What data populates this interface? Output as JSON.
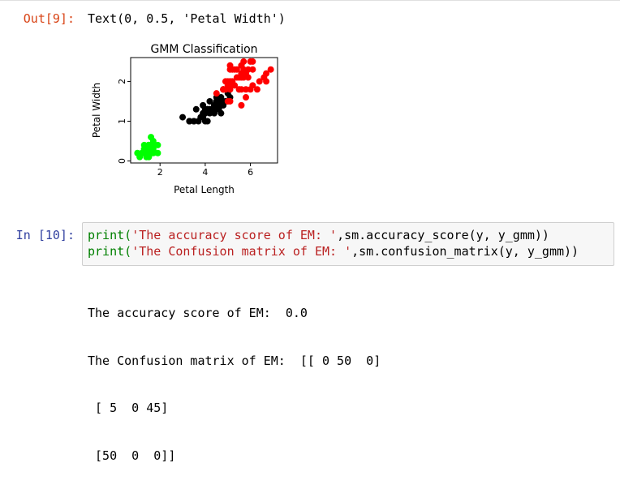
{
  "cells": {
    "out9": {
      "prompt": "Out[9]:",
      "text": "Text(0, 0.5, 'Petal Width')"
    },
    "in10": {
      "prompt": "In [10]:",
      "line1": {
        "fn": "print(",
        "str": "'The accuracy score of EM: '",
        "rest": ",sm.accuracy_score(y, y_gmm))"
      },
      "line2": {
        "fn": "print(",
        "str": "'The Confusion matrix of EM: '",
        "rest": ",sm.confusion_matrix(y, y_gmm))"
      }
    },
    "stdout": [
      "The accuracy score of EM:  0.0",
      "The Confusion matrix of EM:  [[ 0 50  0]",
      " [ 5  0 45]",
      " [50  0  0]]"
    ]
  },
  "chart_data": {
    "type": "scatter",
    "title": "GMM Classification",
    "xlabel": "Petal Length",
    "ylabel": "Petal Width",
    "xlim": [
      0.7,
      7.2
    ],
    "ylim": [
      -0.05,
      2.6
    ],
    "xticks": [
      2,
      4,
      6
    ],
    "yticks": [
      0,
      1,
      2
    ],
    "grid": false,
    "series": [
      {
        "color": "#00ff00",
        "points": [
          [
            1.4,
            0.2
          ],
          [
            1.4,
            0.2
          ],
          [
            1.3,
            0.2
          ],
          [
            1.5,
            0.2
          ],
          [
            1.4,
            0.2
          ],
          [
            1.7,
            0.4
          ],
          [
            1.4,
            0.3
          ],
          [
            1.5,
            0.2
          ],
          [
            1.4,
            0.2
          ],
          [
            1.5,
            0.1
          ],
          [
            1.5,
            0.2
          ],
          [
            1.6,
            0.2
          ],
          [
            1.4,
            0.1
          ],
          [
            1.1,
            0.1
          ],
          [
            1.2,
            0.2
          ],
          [
            1.5,
            0.4
          ],
          [
            1.3,
            0.4
          ],
          [
            1.4,
            0.3
          ],
          [
            1.7,
            0.3
          ],
          [
            1.5,
            0.3
          ],
          [
            1.7,
            0.2
          ],
          [
            1.5,
            0.4
          ],
          [
            1.0,
            0.2
          ],
          [
            1.7,
            0.5
          ],
          [
            1.9,
            0.2
          ],
          [
            1.6,
            0.2
          ],
          [
            1.6,
            0.4
          ],
          [
            1.5,
            0.2
          ],
          [
            1.4,
            0.2
          ],
          [
            1.6,
            0.2
          ],
          [
            1.6,
            0.2
          ],
          [
            1.5,
            0.4
          ],
          [
            1.5,
            0.1
          ],
          [
            1.4,
            0.2
          ],
          [
            1.5,
            0.2
          ],
          [
            1.2,
            0.2
          ],
          [
            1.3,
            0.2
          ],
          [
            1.4,
            0.1
          ],
          [
            1.3,
            0.2
          ],
          [
            1.5,
            0.2
          ],
          [
            1.3,
            0.3
          ],
          [
            1.3,
            0.3
          ],
          [
            1.3,
            0.2
          ],
          [
            1.6,
            0.6
          ],
          [
            1.9,
            0.4
          ],
          [
            1.4,
            0.3
          ],
          [
            1.6,
            0.2
          ],
          [
            1.4,
            0.2
          ],
          [
            1.5,
            0.2
          ],
          [
            1.4,
            0.2
          ]
        ]
      },
      {
        "color": "#000000",
        "points": [
          [
            4.7,
            1.4
          ],
          [
            4.5,
            1.5
          ],
          [
            4.9,
            1.5
          ],
          [
            4.0,
            1.3
          ],
          [
            4.6,
            1.5
          ],
          [
            4.5,
            1.3
          ],
          [
            4.7,
            1.6
          ],
          [
            3.3,
            1.0
          ],
          [
            4.6,
            1.3
          ],
          [
            3.9,
            1.4
          ],
          [
            3.5,
            1.0
          ],
          [
            4.2,
            1.5
          ],
          [
            4.0,
            1.0
          ],
          [
            4.7,
            1.4
          ],
          [
            3.6,
            1.3
          ],
          [
            4.4,
            1.4
          ],
          [
            4.5,
            1.5
          ],
          [
            4.1,
            1.0
          ],
          [
            4.5,
            1.5
          ],
          [
            3.9,
            1.1
          ],
          [
            4.8,
            1.8
          ],
          [
            4.0,
            1.3
          ],
          [
            4.9,
            1.5
          ],
          [
            4.7,
            1.2
          ],
          [
            4.3,
            1.3
          ],
          [
            4.4,
            1.4
          ],
          [
            4.8,
            1.4
          ],
          [
            5.0,
            1.7
          ],
          [
            4.5,
            1.5
          ],
          [
            3.5,
            1.0
          ],
          [
            3.8,
            1.1
          ],
          [
            3.7,
            1.0
          ],
          [
            3.9,
            1.2
          ],
          [
            5.1,
            1.6
          ],
          [
            4.5,
            1.5
          ],
          [
            4.5,
            1.6
          ],
          [
            4.7,
            1.5
          ],
          [
            4.4,
            1.3
          ],
          [
            4.1,
            1.3
          ],
          [
            4.0,
            1.3
          ],
          [
            4.4,
            1.2
          ],
          [
            4.6,
            1.4
          ],
          [
            4.0,
            1.2
          ],
          [
            3.3,
            1.0
          ],
          [
            4.2,
            1.3
          ],
          [
            4.2,
            1.2
          ],
          [
            4.2,
            1.3
          ],
          [
            4.3,
            1.3
          ],
          [
            3.0,
            1.1
          ],
          [
            4.1,
            1.3
          ]
        ]
      },
      {
        "color": "#ff0000",
        "points": [
          [
            6.0,
            2.5
          ],
          [
            5.1,
            1.9
          ],
          [
            5.9,
            2.1
          ],
          [
            5.6,
            1.8
          ],
          [
            5.8,
            2.2
          ],
          [
            6.6,
            2.1
          ],
          [
            4.5,
            1.7
          ],
          [
            6.3,
            1.8
          ],
          [
            5.8,
            1.8
          ],
          [
            6.1,
            2.5
          ],
          [
            5.1,
            2.0
          ],
          [
            5.3,
            1.9
          ],
          [
            5.5,
            2.1
          ],
          [
            5.0,
            2.0
          ],
          [
            5.1,
            2.4
          ],
          [
            5.3,
            2.3
          ],
          [
            5.5,
            1.8
          ],
          [
            6.7,
            2.2
          ],
          [
            6.9,
            2.3
          ],
          [
            5.0,
            1.5
          ],
          [
            5.7,
            2.3
          ],
          [
            4.9,
            2.0
          ],
          [
            6.7,
            2.0
          ],
          [
            4.9,
            1.8
          ],
          [
            5.7,
            2.1
          ],
          [
            6.0,
            1.8
          ],
          [
            4.8,
            1.8
          ],
          [
            4.9,
            1.8
          ],
          [
            5.6,
            2.1
          ],
          [
            5.8,
            1.6
          ],
          [
            6.1,
            1.9
          ],
          [
            6.4,
            2.0
          ],
          [
            5.6,
            2.2
          ],
          [
            5.1,
            1.5
          ],
          [
            5.6,
            1.4
          ],
          [
            6.1,
            2.3
          ],
          [
            5.6,
            2.4
          ],
          [
            5.5,
            1.8
          ],
          [
            4.8,
            1.8
          ],
          [
            5.4,
            2.1
          ],
          [
            5.6,
            2.4
          ],
          [
            5.1,
            2.3
          ],
          [
            5.1,
            1.9
          ],
          [
            5.9,
            2.3
          ],
          [
            5.7,
            2.5
          ],
          [
            5.2,
            2.3
          ],
          [
            5.0,
            1.9
          ],
          [
            5.2,
            2.0
          ],
          [
            5.4,
            2.3
          ],
          [
            5.1,
            1.8
          ]
        ]
      }
    ]
  }
}
